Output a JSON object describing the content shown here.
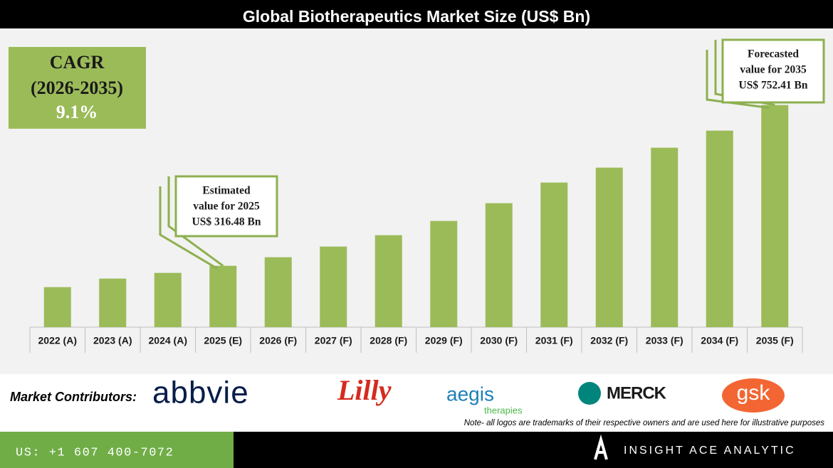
{
  "chart_data": {
    "type": "bar",
    "title": "Global Biotherapeutics Market Size (US$ Bn)",
    "categories": [
      "2022 (A)",
      "2023 (A)",
      "2024 (A)",
      "2025 (E)",
      "2026 (F)",
      "2027 (F)",
      "2028 (F)",
      "2029 (F)",
      "2030 (F)",
      "2031 (F)",
      "2032 (F)",
      "2033 (F)",
      "2034 (F)",
      "2035 (F)"
    ],
    "values": [
      258.6,
      281.8,
      297.2,
      316.48,
      339.7,
      368.6,
      399.5,
      438.0,
      486.3,
      542.2,
      582.7,
      636.7,
      683.0,
      752.41
    ],
    "value_labels": [
      null,
      null,
      null,
      "US$ 316.48 Bn",
      null,
      null,
      null,
      null,
      null,
      null,
      null,
      null,
      null,
      "US$ 752.41 Bn"
    ],
    "color": "#9bbb59",
    "ylim": [
      150,
      800
    ],
    "annotations": [
      [
        "Estimated",
        "value for 2025"
      ],
      [
        "Forecasted",
        "value for 2035"
      ]
    ],
    "cagr": [
      "CAGR",
      "(2026-2035)",
      "9.1%"
    ]
  },
  "contributors": {
    "label": "Market Contributors:",
    "logos": [
      "abbvie",
      "Lilly",
      "aegis",
      "therapies",
      "MERCK",
      "gsk"
    ],
    "note": "Note- all logos are trademarks of their respective owners and are used here for illustrative purposes"
  },
  "footer": {
    "phone": "US: +1 607 400-7072",
    "brand": "INSIGHT ACE ANALYTIC"
  }
}
